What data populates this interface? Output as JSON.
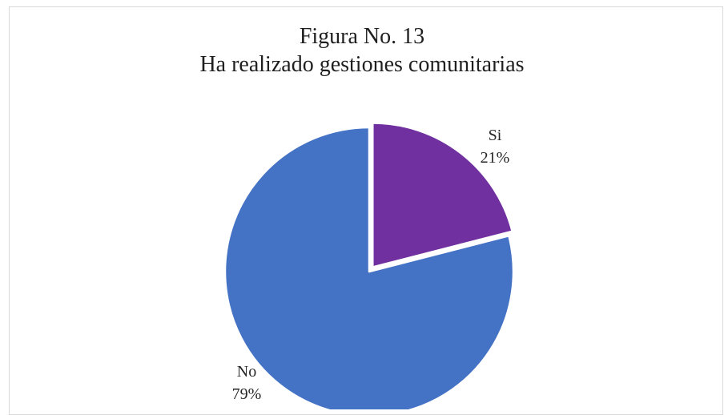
{
  "chart_data": {
    "type": "pie",
    "title": "Figura No. 13",
    "subtitle": "Ha realizado gestiones comunitarias",
    "slices": [
      {
        "label": "Si",
        "value": 21,
        "display": "21%",
        "color": "#7030a0",
        "exploded": true
      },
      {
        "label": "No",
        "value": 79,
        "display": "79%",
        "color": "#4472c4",
        "exploded": false
      }
    ],
    "legend": "none"
  }
}
